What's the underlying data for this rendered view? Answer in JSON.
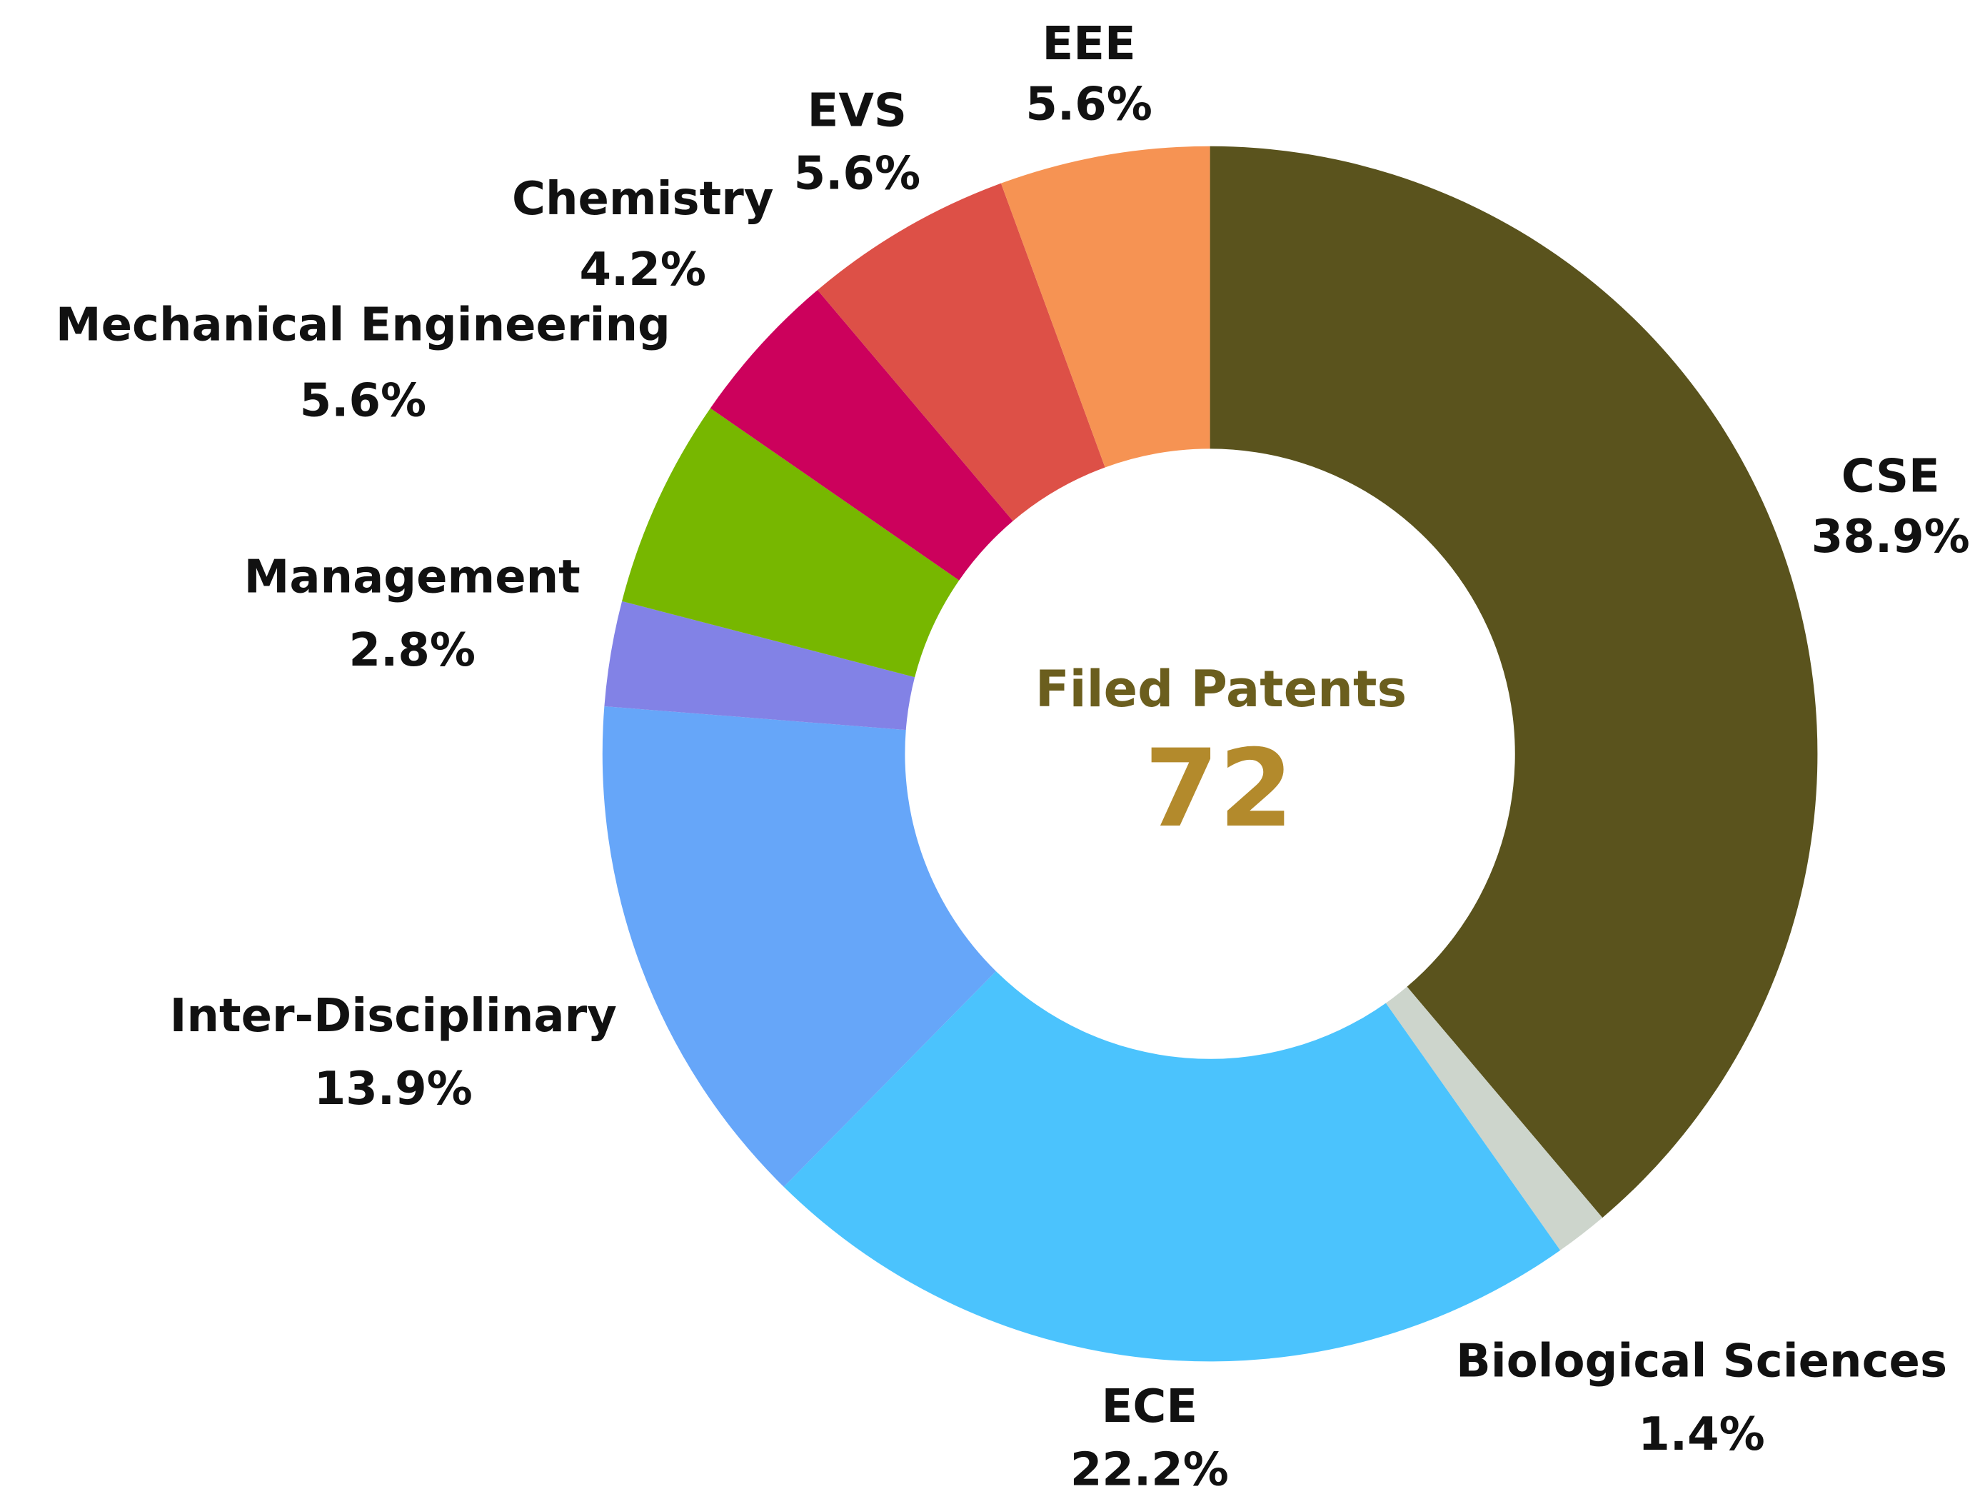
{
  "chart_data": {
    "type": "donut",
    "center_title": "Filed Patents",
    "center_value": "72",
    "categories": [
      "CSE",
      "Biological Sciences",
      "ECE",
      "Inter-Disciplinary",
      "Management",
      "Mechanical Engineering",
      "Chemistry",
      "EVS",
      "EEE"
    ],
    "values": [
      38.9,
      1.4,
      22.2,
      13.9,
      2.8,
      5.6,
      4.2,
      5.6,
      5.6
    ],
    "value_labels": [
      "38.9%",
      "1.4%",
      "22.2%",
      "13.9%",
      "2.8%",
      "5.6%",
      "4.2%",
      "5.6%",
      "5.6%"
    ],
    "colors": [
      "#5a531d",
      "#cdd5cc",
      "#4bc3fd",
      "#66a6f9",
      "#8282e6",
      "#77b700",
      "#cc015c",
      "#dd5047",
      "#f69353"
    ]
  }
}
